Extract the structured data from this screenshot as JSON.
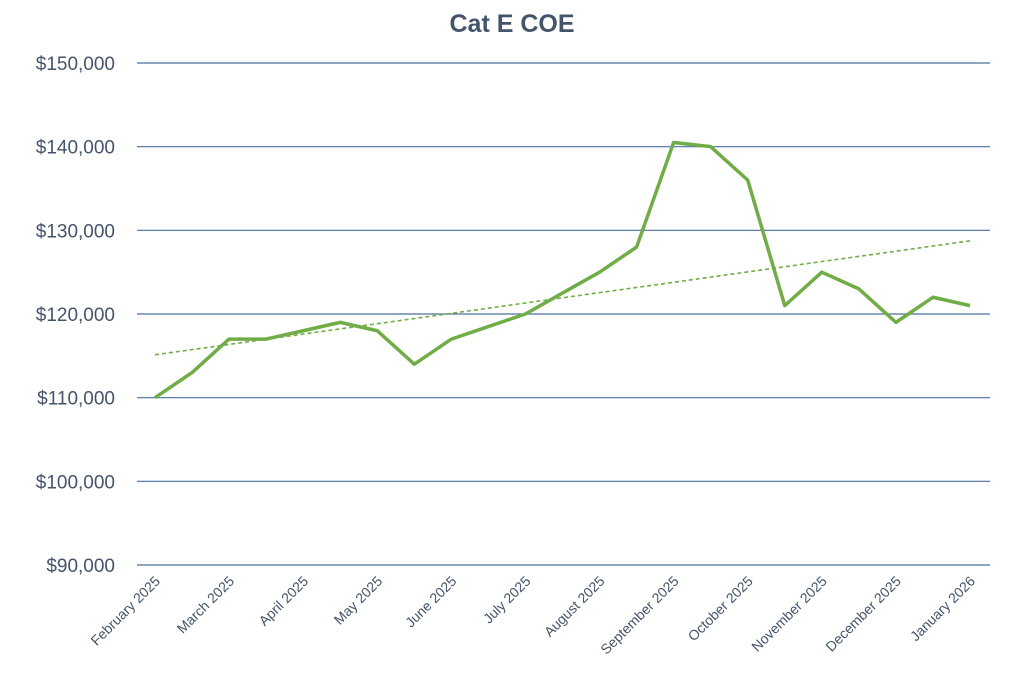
{
  "chart_data": {
    "type": "line",
    "title": "Cat E COE",
    "categories": [
      "February 2025",
      null,
      "March 2025",
      null,
      "April 2025",
      null,
      "May 2025",
      null,
      "June 2025",
      null,
      "July 2025",
      null,
      "August 2025",
      null,
      "September 2025",
      null,
      "October 2025",
      null,
      "November 2025",
      null,
      "December 2025",
      null,
      "January 2026"
    ],
    "series": [
      {
        "color": "#70ad47",
        "values": [
          110000,
          113000,
          117000,
          117000,
          118000,
          119000,
          118000,
          114000,
          117000,
          118500,
          120000,
          122500,
          125000,
          128000,
          140500,
          140000,
          136000,
          121000,
          125000,
          123000,
          119000,
          122000,
          121000
        ]
      }
    ],
    "trendline": "linear",
    "ylim": [
      90000,
      150000
    ],
    "yticks": [
      {
        "value": 90000,
        "label": "$90,000"
      },
      {
        "value": 100000,
        "label": "$100,000"
      },
      {
        "value": 110000,
        "label": "$110,000"
      },
      {
        "value": 120000,
        "label": "$120,000"
      },
      {
        "value": 130000,
        "label": "$130,000"
      },
      {
        "value": 140000,
        "label": "$140,000"
      },
      {
        "value": 150000,
        "label": "$150,000"
      }
    ],
    "grid": true
  }
}
